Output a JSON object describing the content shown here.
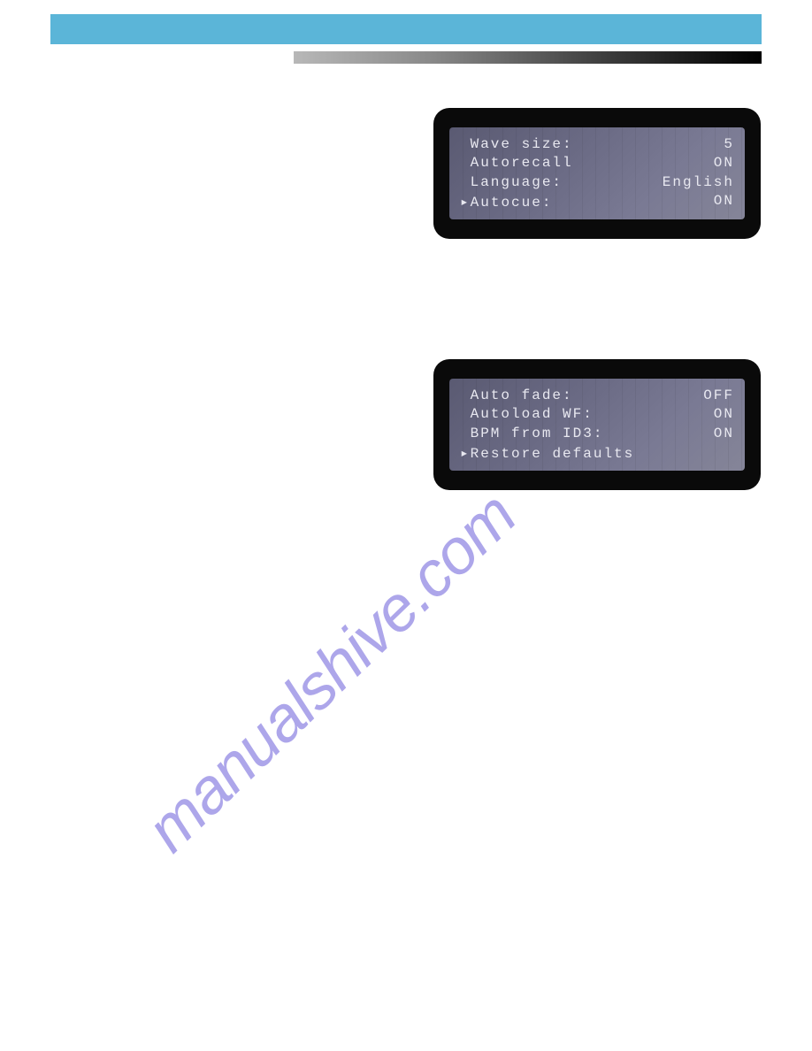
{
  "colors": {
    "top_bar": "#5bb5d8",
    "gradient_start": "#b8b8b8",
    "gradient_end": "#000000",
    "lcd_frame": "#0a0a0a",
    "lcd_bg_start": "#5a5a72",
    "lcd_bg_end": "#858598",
    "lcd_text": "#e8e8f0",
    "watermark": "#6b5fd9"
  },
  "lcd1": {
    "rows": [
      {
        "label": " Wave size:",
        "value": "5"
      },
      {
        "label": " Autorecall",
        "value": "ON"
      },
      {
        "label": " Language:",
        "value": "English"
      },
      {
        "label": "▸Autocue:",
        "value": "ON"
      }
    ]
  },
  "lcd2": {
    "rows": [
      {
        "label": " Auto fade:",
        "value": "OFF"
      },
      {
        "label": " Autoload WF:",
        "value": "ON"
      },
      {
        "label": " BPM from ID3:",
        "value": "ON"
      }
    ],
    "last_row": "▸Restore defaults"
  },
  "watermark": {
    "text": "manualshive.com"
  }
}
